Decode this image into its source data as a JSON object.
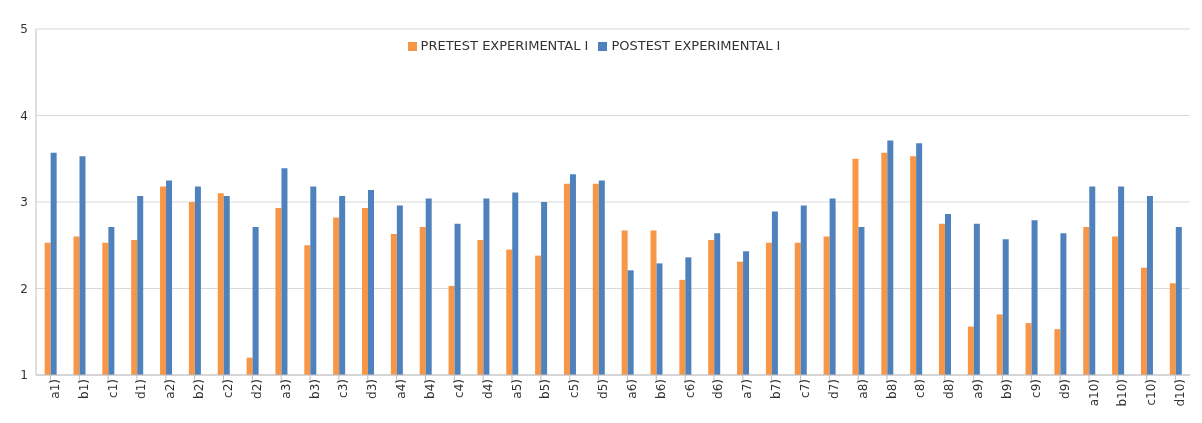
{
  "chart_data": {
    "type": "bar",
    "categories": [
      "a1)",
      "b1)",
      "c1)",
      "d1)",
      "a2)",
      "b2)",
      "c2)",
      "d2)",
      "a3)",
      "b3)",
      "c3)",
      "d3)",
      "a4)",
      "b4)",
      "c4)",
      "d4)",
      "a5)",
      "b5)",
      "c5)",
      "d5)",
      "a6)",
      "b6)",
      "c6)",
      "d6)",
      "a7)",
      "b7)",
      "c7)",
      "d7)",
      "a8)",
      "b8)",
      "c8)",
      "d8)",
      "a9)",
      "b9)",
      "c9)",
      "d9)",
      "a10)",
      "b10)",
      "c10)",
      "d10)"
    ],
    "series": [
      {
        "name": "PRETEST EXPERIMENTAL I",
        "color": "#f79646",
        "values": [
          2.53,
          2.6,
          2.53,
          2.56,
          3.18,
          3.0,
          3.1,
          1.2,
          2.93,
          2.5,
          2.82,
          2.93,
          2.63,
          2.71,
          2.03,
          2.56,
          2.45,
          2.38,
          3.21,
          3.21,
          2.67,
          2.67,
          2.1,
          2.56,
          2.31,
          2.53,
          2.53,
          2.6,
          3.5,
          3.57,
          3.53,
          2.75,
          1.56,
          1.7,
          1.6,
          1.53,
          2.71,
          2.6,
          2.24,
          2.06
        ]
      },
      {
        "name": "POSTEST EXPERIMENTAL I",
        "color": "#4f81bd",
        "values": [
          3.57,
          3.53,
          2.71,
          3.07,
          3.25,
          3.18,
          3.07,
          2.71,
          3.39,
          3.18,
          3.07,
          3.14,
          2.96,
          3.04,
          2.75,
          3.04,
          3.11,
          3.0,
          3.32,
          3.25,
          2.21,
          2.29,
          2.36,
          2.64,
          2.43,
          2.89,
          2.96,
          3.04,
          2.71,
          3.71,
          3.68,
          2.86,
          2.75,
          2.57,
          2.79,
          2.64,
          3.18,
          3.18,
          3.07,
          2.71
        ]
      }
    ],
    "ylim": [
      1,
      5
    ],
    "yticks": [
      1,
      2,
      3,
      4,
      5
    ],
    "grid": "y",
    "legend": "top"
  }
}
